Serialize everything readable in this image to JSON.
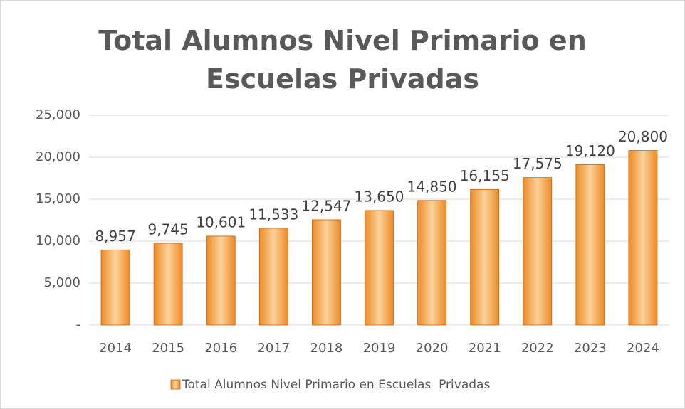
{
  "chart_data": {
    "type": "bar",
    "title": "Total Alumnos Nivel Primario en Escuelas Privadas",
    "categories": [
      "2014",
      "2015",
      "2016",
      "2017",
      "2018",
      "2019",
      "2020",
      "2021",
      "2022",
      "2023",
      "2024"
    ],
    "values": [
      8957,
      9745,
      10601,
      11533,
      12547,
      13650,
      14850,
      16155,
      17575,
      19120,
      20800
    ],
    "value_labels": [
      "8,957",
      "9,745",
      "10,601",
      "11,533",
      "12,547",
      "13,650",
      "14,850",
      "16,155",
      "17,575",
      "19,120",
      "20,800"
    ],
    "series_name": "Total Alumnos Nivel Primario en Escuelas  Privadas",
    "color": "#ee8a25",
    "ylim": [
      0,
      25000
    ],
    "yticks": [
      {
        "value": 0,
        "label": "-"
      },
      {
        "value": 5000,
        "label": "5,000"
      },
      {
        "value": 10000,
        "label": "10,000"
      },
      {
        "value": 15000,
        "label": "15,000"
      },
      {
        "value": 20000,
        "label": "20,000"
      },
      {
        "value": 25000,
        "label": "25,000"
      }
    ],
    "grid": true
  }
}
